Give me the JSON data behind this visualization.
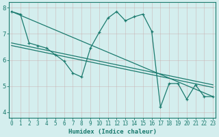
{
  "xlabel": "Humidex (Indice chaleur)",
  "bg_color": "#d4eeee",
  "grid_color": "#b8d8d8",
  "line_color": "#1a7a6e",
  "zigzag_x": [
    0,
    1,
    2,
    3,
    4,
    5,
    6,
    7,
    8,
    9,
    10,
    11,
    12,
    13,
    14,
    15,
    16,
    17,
    18,
    19,
    20,
    21,
    22,
    23
  ],
  "zigzag_y": [
    7.85,
    7.75,
    6.65,
    6.55,
    6.45,
    6.2,
    5.95,
    5.5,
    5.35,
    6.45,
    7.05,
    7.6,
    7.85,
    7.5,
    7.65,
    7.75,
    7.1,
    4.2,
    5.1,
    5.1,
    4.5,
    5.05,
    4.6,
    4.6
  ],
  "line1_x": [
    0,
    23
  ],
  "line1_y": [
    7.85,
    4.6
  ],
  "line2_x": [
    0,
    9,
    23
  ],
  "line2_y": [
    6.65,
    5.65,
    5.0
  ],
  "line3_x": [
    0,
    9,
    23
  ],
  "line3_y": [
    6.55,
    5.55,
    4.9
  ],
  "ylim": [
    3.8,
    8.2
  ],
  "xlim": [
    -0.3,
    23.3
  ],
  "yticks": [
    4,
    5,
    6,
    7,
    8
  ],
  "xticks": [
    0,
    1,
    2,
    3,
    4,
    5,
    6,
    7,
    8,
    9,
    10,
    11,
    12,
    13,
    14,
    15,
    16,
    17,
    18,
    19,
    20,
    21,
    22,
    23
  ],
  "tick_fontsize": 5.5,
  "label_fontsize": 6.5
}
